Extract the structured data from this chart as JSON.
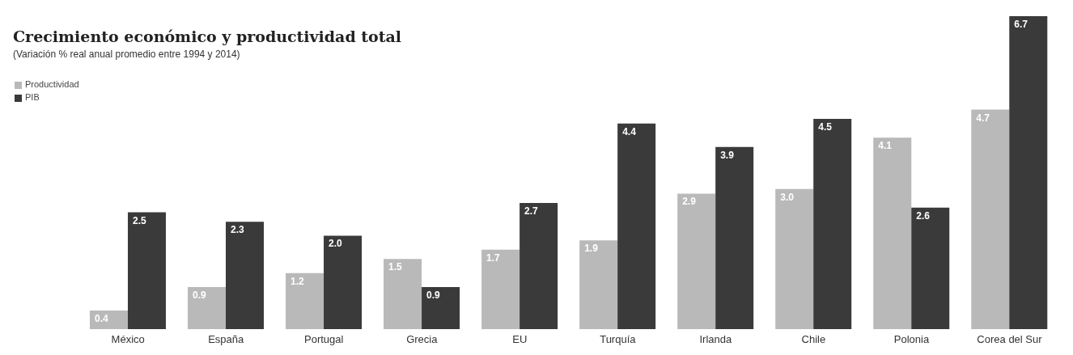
{
  "chart_data": {
    "type": "bar",
    "title": "Crecimiento económico y productividad total",
    "subtitle": "(Variación % real anual promedio entre 1994 y 2014)",
    "categories": [
      "México",
      "España",
      "Portugal",
      "Grecia",
      "EU",
      "Turquía",
      "Irlanda",
      "Chile",
      "Polonia",
      "Corea del Sur"
    ],
    "series": [
      {
        "name": "Productividad",
        "color": "#b9b9b9",
        "values": [
          0.4,
          0.9,
          1.2,
          1.5,
          1.7,
          1.9,
          2.9,
          3.0,
          4.1,
          4.7
        ],
        "value_labels": [
          "0.4",
          "0.9",
          "1.2",
          "1.5",
          "1.7",
          "1.9",
          "2.9",
          "3.0",
          "4.1",
          "4.7"
        ]
      },
      {
        "name": "PIB",
        "color": "#3a3a3a",
        "values": [
          2.5,
          2.3,
          2.0,
          0.9,
          2.7,
          4.4,
          3.9,
          4.5,
          2.6,
          6.7
        ],
        "value_labels": [
          "2.5",
          "2.3",
          "2.0",
          "0.9",
          "2.7",
          "4.4",
          "3.9",
          "4.5",
          "2.6",
          "6.7"
        ]
      }
    ],
    "legend": "top left",
    "grid": false
  }
}
